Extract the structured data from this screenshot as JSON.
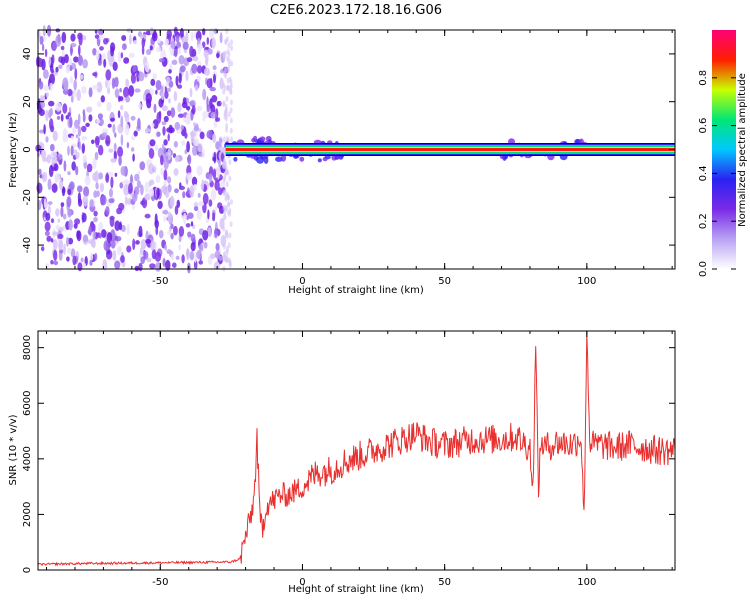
{
  "title": "C2E6.2023.172.18.16.G06",
  "chart_data": [
    {
      "type": "heatmap",
      "xlabel": "Height of straight line (km)",
      "ylabel": "Frequency (Hz)",
      "xlim": [
        -93,
        131
      ],
      "ylim": [
        -50,
        50
      ],
      "xticks": [
        -50,
        0,
        50,
        100
      ],
      "yticks": [
        -40,
        -20,
        0,
        20,
        40
      ],
      "colorbar": {
        "label": "Normalized spectral amplitude",
        "range": [
          0,
          1
        ],
        "ticks": [
          "0.0",
          "0.2",
          "0.4",
          "0.6",
          "0.8"
        ],
        "colormap": [
          "#ffffff",
          "#b9a3f5",
          "#7a2be6",
          "#2a22f2",
          "#00c8ff",
          "#00e676",
          "#c8ff00",
          "#ff1e00",
          "#ff0077"
        ]
      },
      "description_points": {
        "noise_region_x": [
          -93,
          -27
        ],
        "signal_line_frequency": 0,
        "signal_start_x": -27,
        "signal_end_x": 131
      }
    },
    {
      "type": "line",
      "xlabel": "Height of straight line (km)",
      "ylabel": "SNR (10 * v/v)",
      "xlim": [
        -93,
        131
      ],
      "ylim": [
        0,
        8600
      ],
      "xticks": [
        -50,
        0,
        50,
        100
      ],
      "yticks": [
        0,
        2000,
        4000,
        6000,
        8000
      ],
      "color": "#e8302f",
      "series": [
        {
          "x": [
            -93,
            -80,
            -60,
            -40,
            -25,
            -22,
            -20,
            -18,
            -17,
            -16,
            -15,
            -14,
            -13,
            -12,
            -10,
            -8,
            -5,
            0,
            5,
            10,
            15,
            20,
            25,
            30,
            35,
            40,
            45,
            50,
            55,
            60,
            65,
            70,
            75,
            80,
            81,
            82,
            83,
            84,
            85,
            90,
            95,
            98,
            99,
            100,
            101,
            102,
            105,
            110,
            115,
            120,
            125,
            131
          ],
          "values": [
            200,
            230,
            250,
            270,
            290,
            400,
            1200,
            2000,
            2600,
            4700,
            1900,
            1500,
            2200,
            2400,
            2500,
            2700,
            2700,
            3000,
            3500,
            3600,
            3900,
            4100,
            4300,
            4500,
            4700,
            4900,
            4600,
            4500,
            4600,
            4700,
            4700,
            4700,
            4800,
            4400,
            2800,
            7900,
            3000,
            4700,
            4400,
            4600,
            4500,
            4800,
            1800,
            8600,
            4700,
            4500,
            4500,
            4400,
            4500,
            4400,
            4300,
            4300
          ]
        }
      ]
    }
  ]
}
